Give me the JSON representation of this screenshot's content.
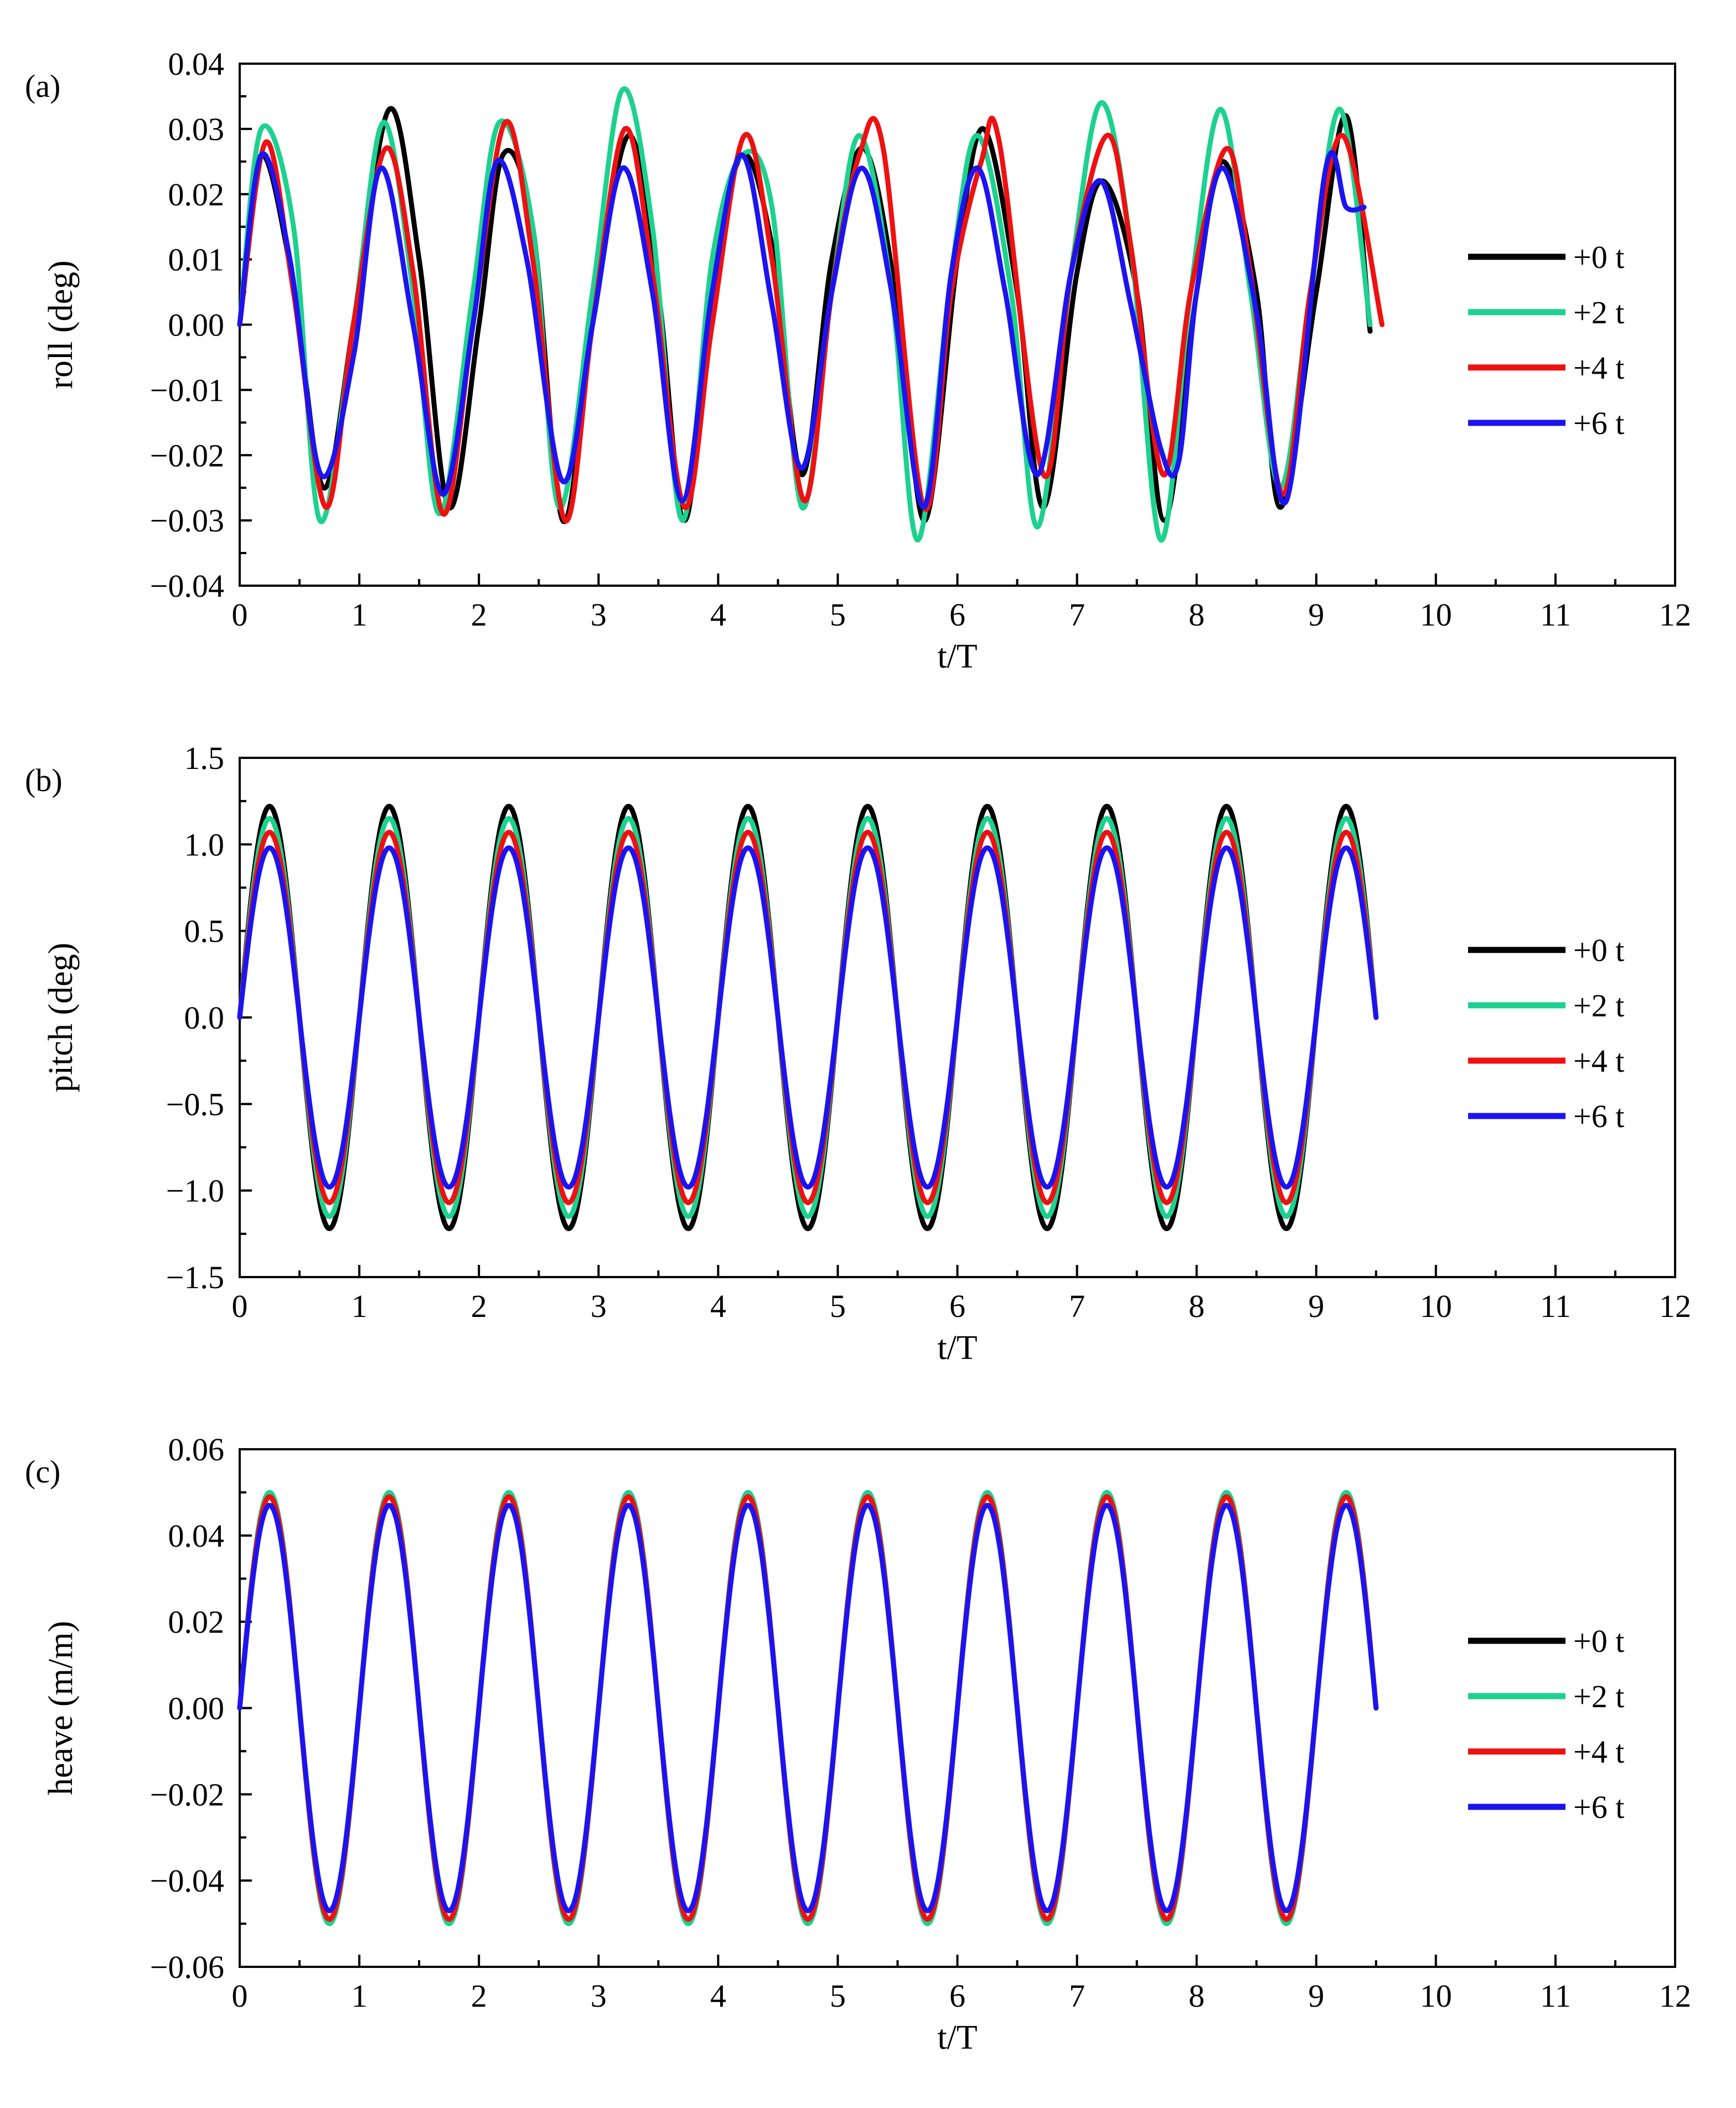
{
  "chart_data": [
    {
      "type": "line",
      "tag": "(a)",
      "xlabel": "t/T",
      "ylabel": "roll (deg)",
      "xlim": [
        0,
        12
      ],
      "ylim": [
        -0.04,
        0.04
      ],
      "xticks": [
        0,
        1,
        2,
        3,
        4,
        5,
        6,
        7,
        8,
        9,
        10,
        11,
        12
      ],
      "xtick_labels": [
        "0",
        "1",
        "2",
        "3",
        "4",
        "5",
        "6",
        "7",
        "8",
        "9",
        "10",
        "11",
        "12"
      ],
      "yticks": [
        0.04,
        0.03,
        0.02,
        0.01,
        0.0,
        -0.01,
        -0.02,
        -0.03,
        -0.04
      ],
      "ytick_labels": [
        "0.04",
        "0.03",
        "0.02",
        "0.01",
        "0.00",
        "−0.01",
        "−0.02",
        "−0.03",
        "−0.04"
      ],
      "legend_position": "right",
      "series": [
        {
          "name": "+0 t",
          "color": "#000000",
          "x": [
            0,
            0.18,
            0.45,
            0.7,
            0.95,
            1.25,
            1.5,
            1.75,
            2.0,
            2.2,
            2.45,
            2.7,
            2.95,
            3.25,
            3.5,
            3.72,
            3.95,
            4.2,
            4.45,
            4.7,
            4.95,
            5.22,
            5.5,
            5.73,
            6.0,
            6.22,
            6.5,
            6.72,
            7.0,
            7.22,
            7.5,
            7.73,
            8.0,
            8.22,
            8.5,
            8.7,
            9.0,
            9.25,
            9.45
          ],
          "y": [
            0,
            0.026,
            0.006,
            -0.025,
            0.0,
            0.033,
            0.01,
            -0.028,
            0.0,
            0.026,
            0.015,
            -0.03,
            0.0,
            0.029,
            0.005,
            -0.03,
            0.005,
            0.026,
            0.012,
            -0.023,
            0.01,
            0.027,
            0.003,
            -0.03,
            0.01,
            0.03,
            0.005,
            -0.028,
            0.008,
            0.022,
            0.005,
            -0.03,
            0.005,
            0.025,
            0.005,
            -0.028,
            0.005,
            0.032,
            -0.001
          ]
        },
        {
          "name": "+2 t",
          "color": "#1dd18f",
          "x": [
            0,
            0.18,
            0.45,
            0.67,
            0.95,
            1.2,
            1.45,
            1.67,
            1.95,
            2.17,
            2.45,
            2.67,
            2.95,
            3.2,
            3.45,
            3.7,
            3.95,
            4.2,
            4.45,
            4.7,
            4.95,
            5.18,
            5.45,
            5.67,
            5.95,
            6.17,
            6.45,
            6.67,
            6.95,
            7.2,
            7.45,
            7.7,
            7.95,
            8.2,
            8.45,
            8.7,
            8.95,
            9.2,
            9.45
          ],
          "y": [
            0,
            0.03,
            0.015,
            -0.03,
            0.0,
            0.031,
            0.005,
            -0.029,
            0.005,
            0.031,
            0.015,
            -0.028,
            0.005,
            0.036,
            0.015,
            -0.03,
            0.01,
            0.026,
            0.018,
            -0.028,
            0.005,
            0.029,
            0.005,
            -0.033,
            0.008,
            0.029,
            0.005,
            -0.031,
            0.008,
            0.034,
            0.012,
            -0.033,
            0.005,
            0.033,
            0.005,
            -0.025,
            0.005,
            0.033,
            0.0
          ]
        },
        {
          "name": "+4 t",
          "color": "#ee1111",
          "x": [
            0,
            0.22,
            0.45,
            0.72,
            0.95,
            1.22,
            1.45,
            1.7,
            1.95,
            2.22,
            2.45,
            2.72,
            2.95,
            3.22,
            3.45,
            3.72,
            3.95,
            4.22,
            4.45,
            4.72,
            4.95,
            5.18,
            5.38,
            5.72,
            5.95,
            6.2,
            6.35,
            6.72,
            6.95,
            7.25,
            7.45,
            7.72,
            7.95,
            8.25,
            8.45,
            8.72,
            8.95,
            9.22,
            9.55
          ],
          "y": [
            0,
            0.028,
            0.005,
            -0.028,
            0.0,
            0.027,
            0.008,
            -0.029,
            0.0,
            0.031,
            0.01,
            -0.03,
            0.0,
            0.03,
            0.008,
            -0.028,
            0.0,
            0.029,
            0.01,
            -0.027,
            0.005,
            0.026,
            0.027,
            -0.028,
            0.005,
            0.025,
            0.028,
            -0.023,
            0.008,
            0.029,
            0.012,
            -0.023,
            0.005,
            0.027,
            0.008,
            -0.026,
            0.005,
            0.029,
            0.0
          ]
        },
        {
          "name": "+6 t",
          "color": "#1c14f0",
          "x": [
            0,
            0.18,
            0.42,
            0.68,
            0.95,
            1.18,
            1.45,
            1.7,
            1.95,
            2.15,
            2.4,
            2.7,
            2.95,
            3.2,
            3.45,
            3.7,
            3.95,
            4.2,
            4.45,
            4.7,
            4.95,
            5.2,
            5.45,
            5.72,
            5.95,
            6.17,
            6.4,
            6.67,
            6.95,
            7.2,
            7.45,
            7.7,
            7.85,
            8.0,
            8.22,
            8.5,
            8.75,
            9.08,
            9.25,
            9.4
          ],
          "y": [
            0,
            0.026,
            0.01,
            -0.023,
            -0.005,
            0.024,
            0.0,
            -0.026,
            0.0,
            0.025,
            0.01,
            -0.024,
            0.0,
            0.024,
            0.005,
            -0.027,
            0.005,
            0.026,
            0.003,
            -0.022,
            0.005,
            0.024,
            0.005,
            -0.028,
            0.008,
            0.024,
            0.005,
            -0.023,
            0.008,
            0.022,
            0.003,
            -0.019,
            -0.021,
            0.005,
            0.024,
            0.002,
            -0.027,
            0.024,
            0.018,
            0.018
          ]
        }
      ]
    },
    {
      "type": "line",
      "tag": "(b)",
      "xlabel": "t/T",
      "ylabel": "pitch (deg)",
      "xlim": [
        0,
        12
      ],
      "ylim": [
        -1.5,
        1.5
      ],
      "xticks": [
        0,
        1,
        2,
        3,
        4,
        5,
        6,
        7,
        8,
        9,
        10,
        11,
        12
      ],
      "xtick_labels": [
        "0",
        "1",
        "2",
        "3",
        "4",
        "5",
        "6",
        "7",
        "8",
        "9",
        "10",
        "11",
        "12"
      ],
      "yticks": [
        1.5,
        1.0,
        0.5,
        0.0,
        -0.5,
        -1.0,
        -1.5
      ],
      "ytick_labels": [
        "1.5",
        "1.0",
        "0.5",
        "0.0",
        "−0.5",
        "−1.0",
        "−1.5"
      ],
      "legend_position": "right",
      "series": [
        {
          "name": "+0 t",
          "color": "#000000",
          "amplitude": 1.22,
          "phase_period": 1.0,
          "x_end": 9.5
        },
        {
          "name": "+2 t",
          "color": "#1dd18f",
          "amplitude": 1.15,
          "phase_period": 1.0,
          "x_end": 9.5
        },
        {
          "name": "+4 t",
          "color": "#ee1111",
          "amplitude": 1.07,
          "phase_period": 1.0,
          "x_end": 9.5
        },
        {
          "name": "+6 t",
          "color": "#1c14f0",
          "amplitude": 0.98,
          "phase_period": 1.0,
          "x_end": 9.5
        }
      ]
    },
    {
      "type": "line",
      "tag": "(c)",
      "xlabel": "t/T",
      "ylabel": "heave (m/m)",
      "xlim": [
        0,
        12
      ],
      "ylim": [
        -0.06,
        0.06
      ],
      "xticks": [
        0,
        1,
        2,
        3,
        4,
        5,
        6,
        7,
        8,
        9,
        10,
        11,
        12
      ],
      "xtick_labels": [
        "0",
        "1",
        "2",
        "3",
        "4",
        "5",
        "6",
        "7",
        "8",
        "9",
        "10",
        "11",
        "12"
      ],
      "yticks": [
        0.06,
        0.04,
        0.02,
        0.0,
        -0.02,
        -0.04,
        -0.06
      ],
      "ytick_labels": [
        "0.06",
        "0.04",
        "0.02",
        "0.00",
        "−0.02",
        "−0.04",
        "−0.06"
      ],
      "legend_position": "right",
      "series": [
        {
          "name": "+0 t",
          "color": "#000000",
          "amplitude": 0.049,
          "phase_period": 1.0,
          "x_end": 9.5
        },
        {
          "name": "+2 t",
          "color": "#1dd18f",
          "amplitude": 0.05,
          "phase_period": 1.0,
          "x_end": 9.5
        },
        {
          "name": "+4 t",
          "color": "#ee1111",
          "amplitude": 0.049,
          "phase_period": 1.0,
          "x_end": 9.5
        },
        {
          "name": "+6 t",
          "color": "#1c14f0",
          "amplitude": 0.047,
          "phase_period": 1.0,
          "x_end": 9.5
        }
      ]
    }
  ]
}
